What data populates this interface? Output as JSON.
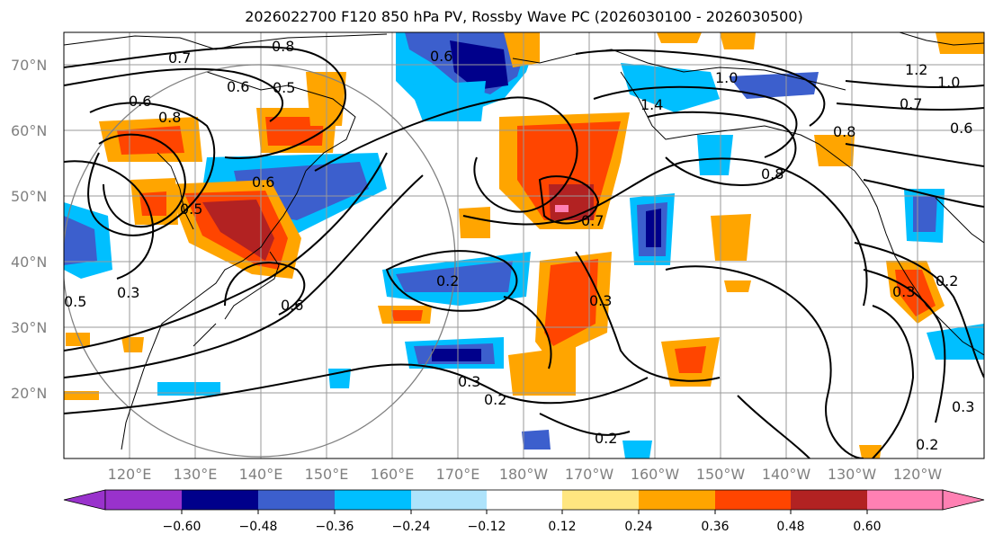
{
  "title": "2026022700 F120 850 hPa PV, Rossby Wave PC (2026030100 - 2026030500)",
  "map": {
    "lat_labels": [
      "70°N",
      "60°N",
      "50°N",
      "40°N",
      "30°N",
      "20°N"
    ],
    "lon_labels": [
      "120°E",
      "130°E",
      "140°E",
      "150°E",
      "160°E",
      "170°E",
      "180°W",
      "170°W",
      "160°W",
      "150°W",
      "140°W",
      "130°W",
      "120°W"
    ],
    "contour_labels": [
      "0.8",
      "0.7",
      "0.6",
      "0.6",
      "0.5",
      "0.6",
      "0.8",
      "0.5",
      "0.6",
      "0.3",
      "0.6",
      "0.5",
      "0.2",
      "0.7",
      "0.3",
      "0.3",
      "0.2",
      "0.2",
      "1.0",
      "1.4",
      "0.8",
      "0.8",
      "1.2",
      "1.0",
      "0.7",
      "0.6",
      "0.2",
      "0.3",
      "0.3",
      "0.2"
    ]
  },
  "colorbar": {
    "ticks": [
      "−0.60",
      "−0.48",
      "−0.36",
      "−0.24",
      "−0.12",
      "0.12",
      "0.24",
      "0.36",
      "0.48",
      "0.60"
    ],
    "colors": [
      "#9932cc",
      "#00008b",
      "#3c5fcd",
      "#00bfff",
      "#aee3fb",
      "#ffffff",
      "#ffe680",
      "#ffa500",
      "#ff4500",
      "#b22222",
      "#ff80b3"
    ]
  },
  "colors": {
    "neg_strong": "#00008b",
    "neg_mid": "#3c5fcd",
    "neg_light": "#00bfff",
    "pos_light": "#ffa500",
    "pos_mid": "#ff4500",
    "pos_strong": "#b22222",
    "pos_max": "#ff80b3",
    "grid": "#9a9a9a",
    "coast": "#000000"
  }
}
